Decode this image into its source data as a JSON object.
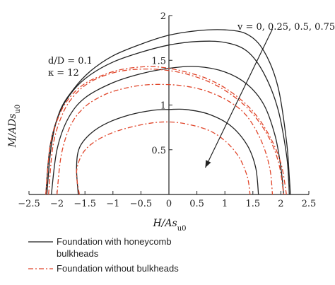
{
  "chart_data": {
    "type": "line",
    "xlabel": "H/As",
    "xlabel_sub": "u0",
    "ylabel": "M/ADs",
    "ylabel_sub": "u0",
    "xlim": [
      -2.5,
      2.5
    ],
    "ylim": [
      0,
      2
    ],
    "xticks": [
      "-2.5",
      "-2",
      "-1.5",
      "-1",
      "-0.5",
      "0",
      "0.5",
      "1",
      "1.5",
      "2",
      "2.5"
    ],
    "yticks": [
      "0.5",
      "1",
      "1.5",
      "2"
    ],
    "grid": false,
    "annotations": {
      "params_line1": "d/D = 0.1",
      "params_line2": "κ = 12",
      "v_label": "v = 0, 0.25, 0.5, 0.75"
    },
    "legend": {
      "placement": "bottom",
      "items": [
        {
          "style": "solid",
          "color": "#222222",
          "line1": "Foundation with honeycomb",
          "line2": "bulkheads"
        },
        {
          "style": "dashdot",
          "color": "#e0452a",
          "line1": "Foundation without bulkheads",
          "line2": ""
        }
      ]
    },
    "series": [
      {
        "group": "with",
        "style": "solid",
        "color": "#222222",
        "x": [
          -2.18,
          -2.1,
          -1.95,
          -1.7,
          -1.4,
          -1.0,
          -0.5,
          0.0,
          0.5,
          1.0,
          1.4,
          1.7,
          1.95,
          2.1,
          2.15,
          2.17
        ],
        "y": [
          0,
          0.55,
          0.93,
          1.18,
          1.38,
          1.55,
          1.68,
          1.78,
          1.83,
          1.84,
          1.79,
          1.6,
          1.2,
          0.6,
          0.2,
          0
        ]
      },
      {
        "group": "with",
        "style": "solid",
        "color": "#222222",
        "x": [
          -2.2,
          -2.12,
          -1.95,
          -1.7,
          -1.4,
          -1.0,
          -0.5,
          0.0,
          0.5,
          1.0,
          1.4,
          1.7,
          1.95,
          2.1,
          2.14,
          2.15
        ],
        "y": [
          0,
          0.55,
          0.92,
          1.17,
          1.34,
          1.48,
          1.59,
          1.67,
          1.71,
          1.7,
          1.6,
          1.35,
          0.95,
          0.45,
          0.15,
          0
        ]
      },
      {
        "group": "with",
        "style": "solid",
        "color": "#222222",
        "x": [
          -2.1,
          -2.0,
          -1.8,
          -1.5,
          -1.0,
          -0.5,
          0.0,
          0.5,
          1.0,
          1.4,
          1.7,
          1.9,
          2.0,
          2.05
        ],
        "y": [
          0,
          0.5,
          0.85,
          1.08,
          1.25,
          1.35,
          1.41,
          1.43,
          1.37,
          1.23,
          1.0,
          0.65,
          0.3,
          0
        ]
      },
      {
        "group": "with",
        "style": "solid",
        "color": "#222222",
        "x": [
          -1.62,
          -1.65,
          -1.6,
          -1.4,
          -1.1,
          -0.7,
          -0.3,
          0.0,
          0.3,
          0.7,
          1.1,
          1.4,
          1.55,
          1.6
        ],
        "y": [
          0,
          0.3,
          0.52,
          0.68,
          0.8,
          0.89,
          0.94,
          0.95,
          0.95,
          0.9,
          0.77,
          0.55,
          0.3,
          0
        ]
      },
      {
        "group": "without",
        "style": "dashdot",
        "color": "#e0452a",
        "x": [
          -2.2,
          -2.12,
          -1.95,
          -1.75,
          -1.5,
          -1.2,
          -0.9,
          -0.6,
          -0.3,
          0.0,
          0.3,
          0.7,
          1.1,
          1.5,
          1.8,
          2.0,
          2.1
        ],
        "y": [
          0,
          0.55,
          0.9,
          1.1,
          1.24,
          1.33,
          1.39,
          1.42,
          1.43,
          1.41,
          1.37,
          1.29,
          1.15,
          0.93,
          0.65,
          0.35,
          0
        ]
      },
      {
        "group": "without",
        "style": "dashdot",
        "color": "#e0452a",
        "x": [
          -2.15,
          -2.07,
          -1.9,
          -1.7,
          -1.45,
          -1.15,
          -0.85,
          -0.55,
          -0.25,
          0.05,
          0.35,
          0.75,
          1.15,
          1.5,
          1.8,
          1.97,
          2.05
        ],
        "y": [
          0,
          0.55,
          0.9,
          1.1,
          1.24,
          1.33,
          1.38,
          1.4,
          1.4,
          1.38,
          1.34,
          1.25,
          1.1,
          0.9,
          0.62,
          0.33,
          0
        ]
      },
      {
        "group": "without",
        "style": "dashdot",
        "color": "#e0452a",
        "x": [
          -2.0,
          -1.92,
          -1.75,
          -1.5,
          -1.2,
          -0.9,
          -0.5,
          -0.1,
          0.3,
          0.7,
          1.1,
          1.4,
          1.65,
          1.8,
          1.85
        ],
        "y": [
          0,
          0.45,
          0.78,
          0.98,
          1.1,
          1.17,
          1.22,
          1.23,
          1.21,
          1.15,
          1.03,
          0.87,
          0.6,
          0.3,
          0
        ]
      },
      {
        "group": "without",
        "style": "dashdot",
        "color": "#e0452a",
        "x": [
          -1.6,
          -1.65,
          -1.55,
          -1.35,
          -1.05,
          -0.7,
          -0.3,
          0.0,
          0.3,
          0.7,
          1.0,
          1.25,
          1.4,
          1.45
        ],
        "y": [
          0,
          0.25,
          0.45,
          0.58,
          0.68,
          0.75,
          0.8,
          0.81,
          0.79,
          0.72,
          0.6,
          0.42,
          0.2,
          0
        ]
      }
    ],
    "arrow": {
      "from": [
        1.85,
        1.85
      ],
      "to": [
        0.65,
        0.3
      ]
    }
  }
}
